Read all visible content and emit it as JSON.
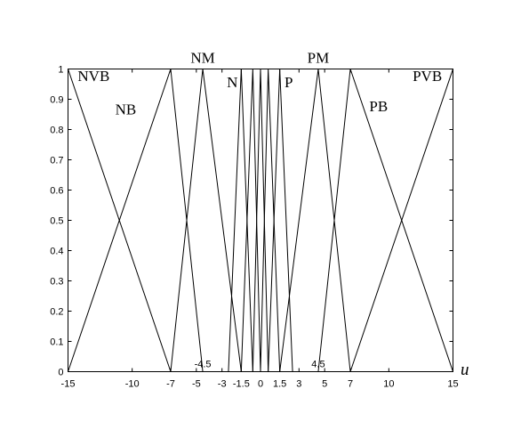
{
  "chart_data": {
    "type": "line",
    "title": "",
    "xlabel": "u",
    "ylabel": "",
    "xlim": [
      -15,
      15
    ],
    "ylim": [
      0,
      1
    ],
    "grid": false,
    "x_ticks": [
      -15,
      -10,
      -7,
      -5,
      -3,
      -1.5,
      0,
      1.5,
      3,
      5,
      7,
      10,
      15
    ],
    "y_ticks": [
      0,
      0.1,
      0.2,
      0.3,
      0.4,
      0.5,
      0.6,
      0.7,
      0.8,
      0.9,
      1
    ],
    "annotations": [
      {
        "text": "-4.5",
        "x": -4.5,
        "y": 0
      },
      {
        "text": "4.5",
        "x": 4.5,
        "y": 0
      }
    ],
    "series": [
      {
        "name": "NVB",
        "x": [
          -15,
          -7
        ],
        "y": [
          1,
          0
        ]
      },
      {
        "name": "NB",
        "x": [
          -15,
          -7,
          -4.5
        ],
        "y": [
          0,
          1,
          0
        ]
      },
      {
        "name": "NM",
        "x": [
          -7,
          -4.5,
          -1.5
        ],
        "y": [
          0,
          1,
          0
        ]
      },
      {
        "name": "N",
        "x": [
          -2.5,
          -1.5,
          -0.6
        ],
        "y": [
          0,
          1,
          0
        ]
      },
      {
        "name": "",
        "x": [
          -1.5,
          -0.6,
          0
        ],
        "y": [
          0,
          1,
          0
        ]
      },
      {
        "name": "",
        "x": [
          -0.6,
          0,
          0.6
        ],
        "y": [
          0,
          1,
          0
        ]
      },
      {
        "name": "",
        "x": [
          0,
          0.6,
          1.5
        ],
        "y": [
          0,
          1,
          0
        ]
      },
      {
        "name": "P",
        "x": [
          0.6,
          1.5,
          2.5
        ],
        "y": [
          0,
          1,
          0
        ]
      },
      {
        "name": "PM",
        "x": [
          1.5,
          4.5,
          7
        ],
        "y": [
          0,
          1,
          0
        ]
      },
      {
        "name": "PB",
        "x": [
          4.5,
          7,
          15
        ],
        "y": [
          0,
          1,
          0
        ]
      },
      {
        "name": "PVB",
        "x": [
          7,
          15
        ],
        "y": [
          0,
          1
        ]
      }
    ],
    "mf_labels": [
      {
        "text": "NVB",
        "x": -13.0,
        "y": 0.96
      },
      {
        "text": "NB",
        "x": -10.5,
        "y": 0.85
      },
      {
        "text": "NM",
        "x": -4.5,
        "y": 1.02
      },
      {
        "text": "N",
        "x": -2.2,
        "y": 0.94
      },
      {
        "text": "P",
        "x": 2.2,
        "y": 0.94
      },
      {
        "text": "PM",
        "x": 4.5,
        "y": 1.02
      },
      {
        "text": "PB",
        "x": 9.2,
        "y": 0.86
      },
      {
        "text": "PVB",
        "x": 13.0,
        "y": 0.96
      }
    ]
  }
}
